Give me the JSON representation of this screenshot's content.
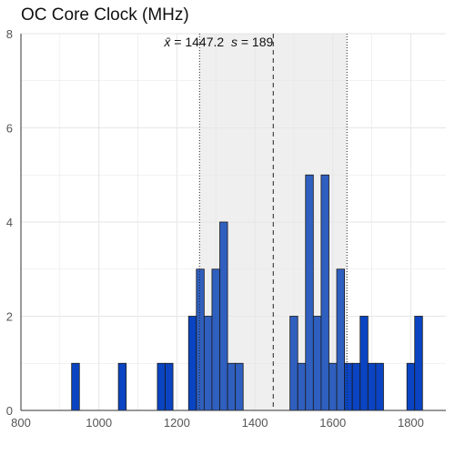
{
  "chart_data": {
    "type": "bar",
    "title": "OC Core Clock (MHz)",
    "xlabel": "",
    "ylabel": "",
    "xlim": [
      800,
      1890
    ],
    "ylim": [
      0,
      8
    ],
    "xticks": [
      800,
      1000,
      1200,
      1400,
      1600,
      1800
    ],
    "yticks": [
      0,
      2,
      4,
      6,
      8
    ],
    "grid": true,
    "bin_width": 20,
    "bins": [
      {
        "x0": 930,
        "x1": 950,
        "count": 1
      },
      {
        "x0": 1050,
        "x1": 1070,
        "count": 1
      },
      {
        "x0": 1150,
        "x1": 1170,
        "count": 1
      },
      {
        "x0": 1170,
        "x1": 1190,
        "count": 1
      },
      {
        "x0": 1230,
        "x1": 1250,
        "count": 2
      },
      {
        "x0": 1250,
        "x1": 1270,
        "count": 3
      },
      {
        "x0": 1270,
        "x1": 1290,
        "count": 2
      },
      {
        "x0": 1290,
        "x1": 1310,
        "count": 3
      },
      {
        "x0": 1310,
        "x1": 1330,
        "count": 4
      },
      {
        "x0": 1330,
        "x1": 1350,
        "count": 1
      },
      {
        "x0": 1350,
        "x1": 1370,
        "count": 1
      },
      {
        "x0": 1490,
        "x1": 1510,
        "count": 2
      },
      {
        "x0": 1510,
        "x1": 1530,
        "count": 1
      },
      {
        "x0": 1530,
        "x1": 1550,
        "count": 5
      },
      {
        "x0": 1550,
        "x1": 1570,
        "count": 2
      },
      {
        "x0": 1570,
        "x1": 1590,
        "count": 5
      },
      {
        "x0": 1590,
        "x1": 1610,
        "count": 1
      },
      {
        "x0": 1610,
        "x1": 1630,
        "count": 3
      },
      {
        "x0": 1630,
        "x1": 1650,
        "count": 1
      },
      {
        "x0": 1650,
        "x1": 1670,
        "count": 1
      },
      {
        "x0": 1670,
        "x1": 1690,
        "count": 2
      },
      {
        "x0": 1690,
        "x1": 1710,
        "count": 1
      },
      {
        "x0": 1710,
        "x1": 1730,
        "count": 1
      },
      {
        "x0": 1790,
        "x1": 1810,
        "count": 1
      },
      {
        "x0": 1810,
        "x1": 1830,
        "count": 2
      }
    ],
    "mean": 1447.2,
    "sd": 189,
    "sd_band": [
      1258.2,
      1636.2
    ],
    "annotation": {
      "mean_symbol": "x̄",
      "mean_text": " = 1447.2  ",
      "sd_symbol": "s",
      "sd_text": " = 189"
    },
    "colors": {
      "bar_outside": "#0a44c2",
      "bar_inside": "#2f5fbf",
      "bar_stroke": "#1a1a1a",
      "band": "#efefef",
      "grid": "#e6e6e6",
      "axis": "#333333"
    }
  }
}
